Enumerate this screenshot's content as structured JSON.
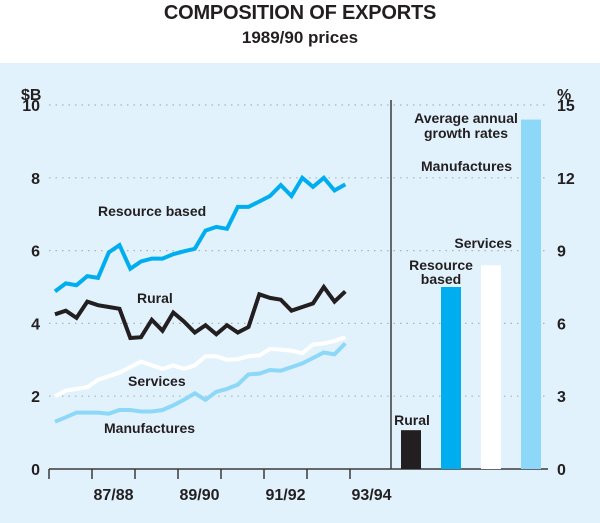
{
  "title": "COMPOSITION OF EXPORTS",
  "subtitle": "1989/90 prices",
  "chart_data": [
    {
      "type": "line",
      "title": "COMPOSITION OF EXPORTS",
      "subtitle": "1989/90 prices",
      "ylabel": "$B",
      "xlabel": "",
      "ylim": [
        0,
        10
      ],
      "yticks": [
        "0",
        "2",
        "4",
        "6",
        "8",
        "10"
      ],
      "xtick_labels": [
        "87/88",
        "89/90",
        "91/92",
        "93/94"
      ],
      "x_start": "1986 Q3",
      "frequency": "quarterly",
      "grid": true,
      "series": [
        {
          "name": "Resource based",
          "color": "#00aeef",
          "values": [
            4.88,
            5.1,
            5.05,
            5.3,
            5.25,
            5.95,
            6.15,
            5.5,
            5.7,
            5.78,
            5.78,
            5.9,
            5.98,
            6.05,
            6.55,
            6.65,
            6.6,
            7.2,
            7.2,
            7.35,
            7.5,
            7.8,
            7.5,
            8.0,
            7.75,
            8.0,
            7.65,
            7.82
          ]
        },
        {
          "name": "Rural",
          "color": "#231f20",
          "values": [
            4.25,
            4.35,
            4.15,
            4.6,
            4.5,
            4.45,
            4.4,
            3.6,
            3.62,
            4.1,
            3.8,
            4.3,
            4.05,
            3.75,
            3.95,
            3.7,
            3.95,
            3.75,
            3.9,
            4.8,
            4.7,
            4.65,
            4.35,
            4.45,
            4.55,
            5.0,
            4.6,
            4.88
          ]
        },
        {
          "name": "Services",
          "color": "#ffffff",
          "values": [
            2.0,
            2.15,
            2.2,
            2.25,
            2.45,
            2.55,
            2.65,
            2.8,
            2.95,
            2.85,
            2.75,
            2.85,
            2.75,
            2.85,
            3.1,
            3.1,
            3.0,
            3.02,
            3.1,
            3.12,
            3.3,
            3.28,
            3.25,
            3.18,
            3.42,
            3.45,
            3.52,
            3.62
          ]
        },
        {
          "name": "Manufactures",
          "color": "#8dd8f8",
          "values": [
            1.3,
            1.42,
            1.55,
            1.55,
            1.55,
            1.52,
            1.62,
            1.62,
            1.58,
            1.58,
            1.62,
            1.75,
            1.9,
            2.08,
            1.9,
            2.12,
            2.2,
            2.32,
            2.6,
            2.62,
            2.72,
            2.7,
            2.8,
            2.9,
            3.05,
            3.2,
            3.15,
            3.45
          ]
        }
      ]
    },
    {
      "type": "bar",
      "title": "Average annual growth rates",
      "ylabel": "%",
      "ylim": [
        0,
        15
      ],
      "yticks": [
        "0",
        "3",
        "6",
        "9",
        "12",
        "15"
      ],
      "grid": true,
      "categories": [
        "Rural",
        "Resource based",
        "Services",
        "Manufactures"
      ],
      "values": [
        1.6,
        7.5,
        8.4,
        14.4
      ],
      "colors": [
        "#231f20",
        "#00aeef",
        "#ffffff",
        "#8dd8f8"
      ]
    }
  ],
  "labels": {
    "left_unit": "$B",
    "right_unit": "%",
    "bar_heading_line1": "Average annual",
    "bar_heading_line2": "growth rates",
    "bar_resource_line1": "Resource",
    "bar_resource_line2": "based"
  }
}
